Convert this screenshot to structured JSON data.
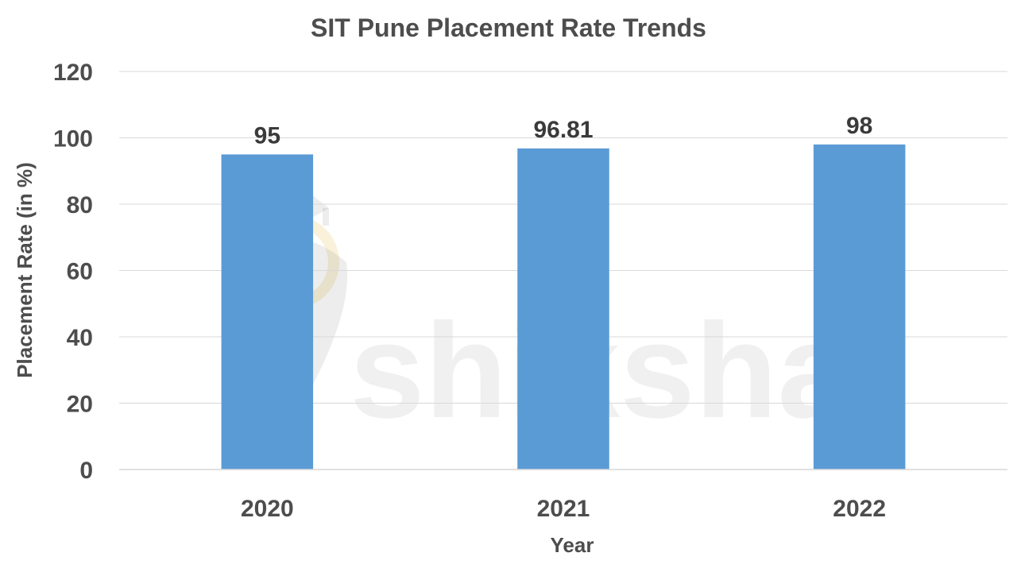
{
  "chart_data": {
    "type": "bar",
    "title": "SIT Pune Placement Rate Trends",
    "xlabel": "Year",
    "ylabel": "Placement Rate (in %)",
    "categories": [
      "2020",
      "2021",
      "2022"
    ],
    "values": [
      95,
      96.81,
      98
    ],
    "data_labels": [
      "95",
      "96.81",
      "98"
    ],
    "ylim": [
      0,
      120
    ],
    "yticks": [
      "0",
      "20",
      "40",
      "60",
      "80",
      "100",
      "120"
    ],
    "grid": true,
    "legend": "none",
    "bar_color": "#5b9bd5"
  },
  "watermark": {
    "text": "shiksha",
    "icon": "graduation-cap-pen-nib-logo"
  }
}
